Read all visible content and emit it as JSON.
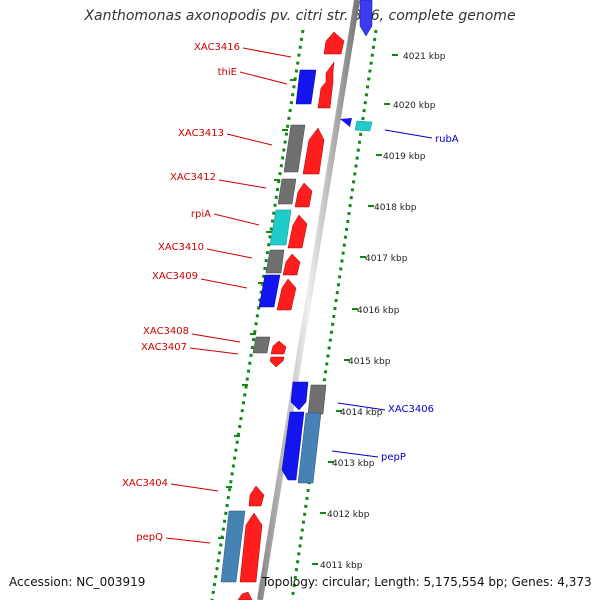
{
  "title": "Xanthomonas axonopodis pv. citri str. 306, complete genome",
  "accession": "Accession: NC_003919",
  "topology": "Topology: circular; Length: 5,175,554 bp; Genes: 4,373",
  "colors": {
    "red": "#ff1e1e",
    "blue": "#1414ee",
    "gray": "#6e6e6e",
    "cyan": "#1ecccc",
    "steel": "#4682b4",
    "label_red": "#cc0000",
    "label_blue": "#0000cc",
    "tick_green": "#118811"
  },
  "scale_ticks": [
    "4021 kbp",
    "4020 kbp",
    "4019 kbp",
    "4018 kbp",
    "4017 kbp",
    "4016 kbp",
    "4015 kbp",
    "4014 kbp",
    "4013 kbp",
    "4012 kbp",
    "4011 kbp"
  ],
  "left_labels": [
    "XAC3416",
    "thiE",
    "XAC3413",
    "XAC3412",
    "rpiA",
    "XAC3410",
    "XAC3409",
    "XAC3408",
    "XAC3407",
    "XAC3404",
    "pepQ"
  ],
  "right_labels": [
    "rubA",
    "XAC3406",
    "pepP"
  ]
}
